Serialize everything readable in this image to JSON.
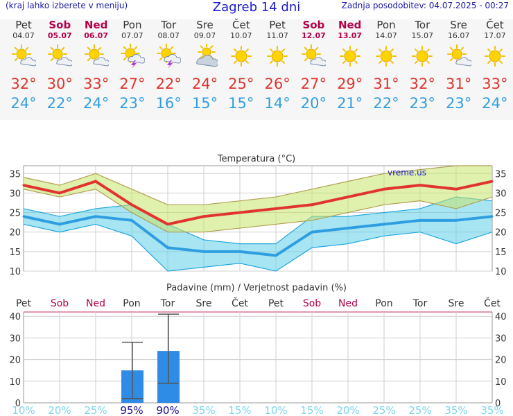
{
  "header": {
    "left": "(kraj lahko izberete v meniju)",
    "title": "Zagreb 14 dni",
    "updated": "Zadnja posodobitev: 04.07.2025 - 00:27"
  },
  "colors": {
    "weekend": "#b3004a",
    "max_temp": "#e0342e",
    "min_temp": "#2f9ee0",
    "bar": "#2e8be6"
  },
  "days": [
    {
      "name": "Pet",
      "date": "04.07",
      "weekend": false,
      "icon": "sun-cloud-icon",
      "tmax": "32°",
      "tmin": "24°"
    },
    {
      "name": "Sob",
      "date": "05.07",
      "weekend": true,
      "icon": "sun-cloud-icon",
      "tmax": "30°",
      "tmin": "22°"
    },
    {
      "name": "Ned",
      "date": "06.07",
      "weekend": true,
      "icon": "sun-cloud-icon",
      "tmax": "33°",
      "tmin": "24°"
    },
    {
      "name": "Pon",
      "date": "07.07",
      "weekend": false,
      "icon": "thunderstorm-sun-icon",
      "tmax": "27°",
      "tmin": "23°"
    },
    {
      "name": "Tor",
      "date": "08.07",
      "weekend": false,
      "icon": "thunderstorm-sun-icon",
      "tmax": "22°",
      "tmin": "16°"
    },
    {
      "name": "Sre",
      "date": "09.07",
      "weekend": false,
      "icon": "cloudy-sun-icon",
      "tmax": "24°",
      "tmin": "15°"
    },
    {
      "name": "Čet",
      "date": "10.07",
      "weekend": false,
      "icon": "sun-icon",
      "tmax": "25°",
      "tmin": "15°"
    },
    {
      "name": "Pet",
      "date": "11.07",
      "weekend": false,
      "icon": "sun-icon",
      "tmax": "26°",
      "tmin": "14°"
    },
    {
      "name": "Sob",
      "date": "12.07",
      "weekend": true,
      "icon": "sun-cloud-icon",
      "tmax": "27°",
      "tmin": "20°"
    },
    {
      "name": "Ned",
      "date": "13.07",
      "weekend": true,
      "icon": "sun-icon",
      "tmax": "29°",
      "tmin": "21°"
    },
    {
      "name": "Pon",
      "date": "14.07",
      "weekend": false,
      "icon": "sun-icon",
      "tmax": "31°",
      "tmin": "22°"
    },
    {
      "name": "Tor",
      "date": "15.07",
      "weekend": false,
      "icon": "sun-icon",
      "tmax": "32°",
      "tmin": "23°"
    },
    {
      "name": "Sre",
      "date": "16.07",
      "weekend": false,
      "icon": "sun-cloud-icon",
      "tmax": "31°",
      "tmin": "23°"
    },
    {
      "name": "Čet",
      "date": "17.07",
      "weekend": false,
      "icon": "sun-icon",
      "tmax": "33°",
      "tmin": "24°"
    }
  ],
  "chart_data": [
    {
      "type": "line",
      "title": "Temperatura (°C)",
      "watermark": "vreme.us",
      "ylim": [
        10,
        37
      ],
      "yticks": [
        10,
        15,
        20,
        25,
        30,
        35
      ],
      "grid": true,
      "series": [
        {
          "values": [
            32,
            30,
            33,
            27,
            22,
            24,
            25,
            26,
            27,
            29,
            31,
            32,
            31,
            33
          ],
          "upper": [
            34,
            32,
            35,
            31,
            27,
            27,
            28,
            29,
            31,
            33,
            35,
            36,
            37,
            37
          ],
          "lower": [
            31,
            29,
            31,
            25,
            20,
            20,
            21,
            22,
            23,
            25,
            27,
            28,
            26,
            29
          ]
        },
        {
          "values": [
            24,
            22,
            24,
            23,
            16,
            15,
            15,
            14,
            20,
            21,
            22,
            23,
            23,
            24
          ],
          "upper": [
            26,
            24,
            26,
            27,
            22,
            18,
            17,
            17,
            24,
            24,
            25,
            26,
            29,
            28
          ],
          "lower": [
            22,
            20,
            22,
            19,
            10,
            11,
            12,
            10,
            16,
            17,
            19,
            20,
            17,
            20
          ]
        }
      ]
    },
    {
      "type": "bar",
      "title": "Padavine (mm) / Verjetnost padavin (%)",
      "categories": [
        "Pet",
        "Sob",
        "Ned",
        "Pon",
        "Tor",
        "Sre",
        "Čet",
        "Pet",
        "Sob",
        "Ned",
        "Pon",
        "Tor",
        "Sre",
        "Čet"
      ],
      "weekend": [
        false,
        true,
        true,
        false,
        false,
        false,
        false,
        false,
        true,
        true,
        false,
        false,
        false,
        false
      ],
      "ylim": [
        0,
        42
      ],
      "yticks": [
        0,
        10,
        20,
        30,
        40
      ],
      "values": [
        0,
        0,
        0,
        15,
        24,
        0,
        0,
        0,
        0,
        0,
        0,
        0,
        0,
        0
      ],
      "error_low": [
        null,
        null,
        null,
        2,
        9,
        null,
        null,
        null,
        null,
        null,
        null,
        null,
        null,
        null
      ],
      "error_high": [
        null,
        null,
        null,
        28,
        41,
        null,
        null,
        null,
        null,
        null,
        null,
        null,
        null,
        null
      ],
      "probability": [
        "10%",
        "20%",
        "25%",
        "95%",
        "90%",
        "35%",
        "15%",
        "10%",
        "15%",
        "20%",
        "25%",
        "25%",
        "35%",
        "35%"
      ]
    }
  ]
}
